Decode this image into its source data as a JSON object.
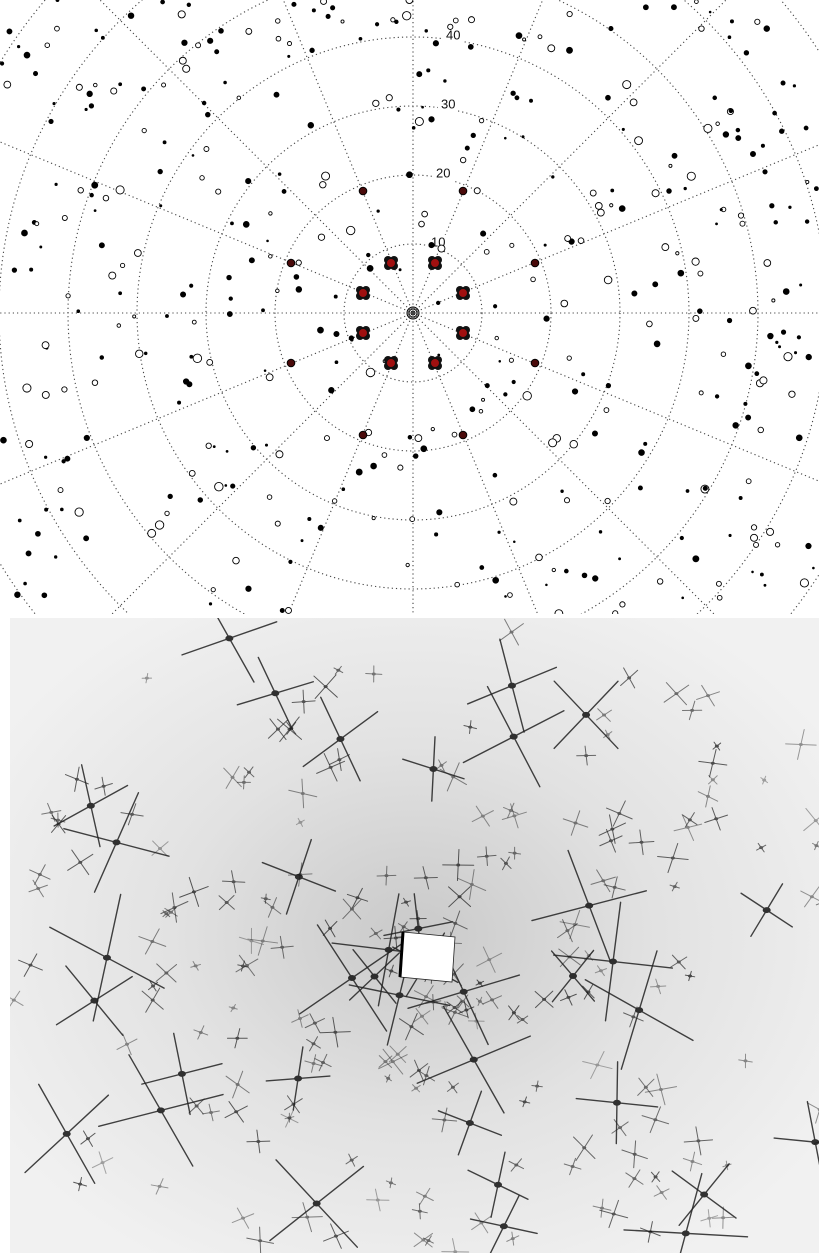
{
  "top_panel": {
    "ring_labels": [
      "10",
      "20",
      "30",
      "40"
    ]
  }
}
